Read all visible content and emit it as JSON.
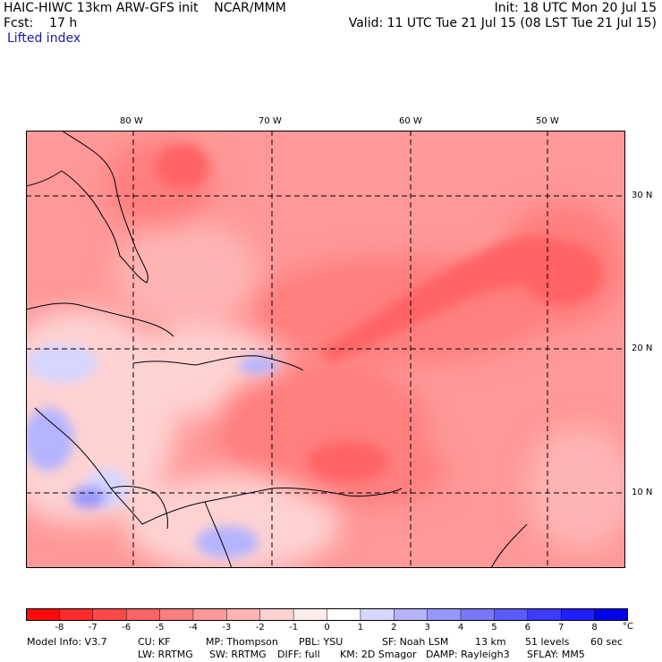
{
  "header": {
    "model_line": "HAIC-HIWC 13km ARW-GFS init    NCAR/MMM",
    "init_line": "Init: 18 UTC Mon 20 Jul 15",
    "fcst_line": "Fcst:    17 h",
    "valid_line": "Valid: 11 UTC Tue 21 Jul 15 (08 LST Tue 21 Jul 15)",
    "field_name": "Lifted index"
  },
  "map": {
    "lon_labels": [
      "80 W",
      "70 W",
      "60 W",
      "50 W"
    ],
    "lat_labels": [
      "30 N",
      "20 N",
      "10 N"
    ],
    "grid_line_color": "#000000",
    "coast_color": "#000000"
  },
  "colorbar": {
    "tick_labels": [
      "-8",
      "-7",
      "-6",
      "-5",
      "-4",
      "-3",
      "-2",
      "-1",
      "0",
      "1",
      "2",
      "3",
      "4",
      "5",
      "6",
      "7",
      "8"
    ],
    "unit": "°C",
    "colors": [
      "#ff0a0a",
      "#ff2b2b",
      "#ff4848",
      "#ff6464",
      "#ff7e7e",
      "#ff9898",
      "#ffb4b4",
      "#ffd2d2",
      "#ffecec",
      "#ffffff",
      "#d6d6ff",
      "#b4b4ff",
      "#9696ff",
      "#7878ff",
      "#5a5aff",
      "#3c3cff",
      "#1e1eff",
      "#0000ee"
    ]
  },
  "footer": {
    "model_info": "Model Info: V3.7",
    "cu": "CU: KF",
    "mp": "MP: Thompson",
    "pbl": "PBL: YSU",
    "sf": "SF: Noah LSM",
    "res": "13 km",
    "levels": "51 levels",
    "dt": "60 sec",
    "lw": "LW: RRTMG",
    "sw": "SW: RRTMG",
    "diff": "DIFF: full",
    "km": "KM: 2D Smagor",
    "damp": "DAMP: Rayleigh3",
    "sflay": "SFLAY: MM5"
  }
}
